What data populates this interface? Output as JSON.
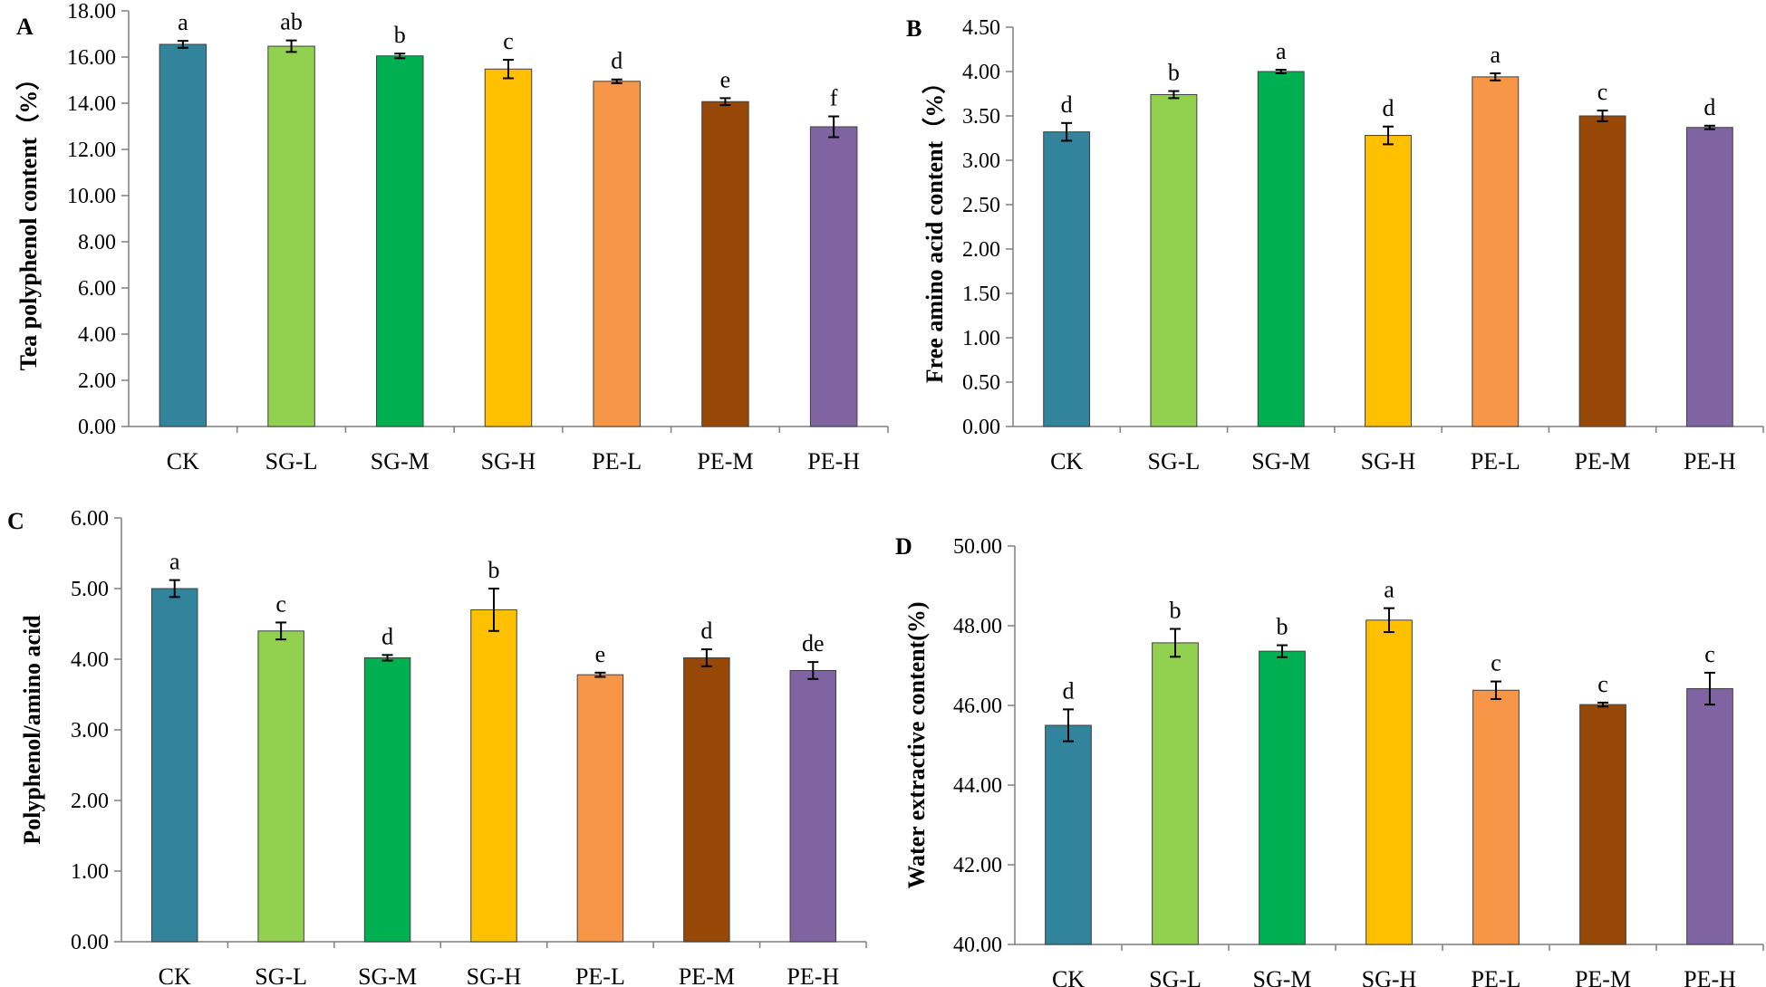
{
  "categories": [
    "CK",
    "SG-L",
    "SG-M",
    "SG-H",
    "PE-L",
    "PE-M",
    "PE-H"
  ],
  "colors": [
    "#31849B",
    "#92D050",
    "#00B050",
    "#FFC000",
    "#F79646",
    "#974806",
    "#8064A2"
  ],
  "chart_data": [
    {
      "panel": "A",
      "type": "bar",
      "ylabel": "Tea polyphenol content（%）",
      "ylim": [
        0,
        18
      ],
      "yticks": [
        "0.00",
        "2.00",
        "4.00",
        "6.00",
        "8.00",
        "10.00",
        "12.00",
        "14.00",
        "16.00",
        "18.00"
      ],
      "values": [
        16.55,
        16.47,
        16.05,
        15.48,
        14.95,
        14.07,
        12.98
      ],
      "errors": [
        0.15,
        0.25,
        0.1,
        0.4,
        0.08,
        0.15,
        0.45
      ],
      "letters": [
        "a",
        "ab",
        "b",
        "c",
        "d",
        "e",
        "f"
      ]
    },
    {
      "panel": "B",
      "type": "bar",
      "ylabel": "Free amino acid content（%）",
      "ylim": [
        0,
        4.5
      ],
      "yticks": [
        "0.00",
        "0.50",
        "1.00",
        "1.50",
        "2.00",
        "2.50",
        "3.00",
        "3.50",
        "4.00",
        "4.50"
      ],
      "values": [
        3.32,
        3.74,
        4.0,
        3.28,
        3.94,
        3.5,
        3.37
      ],
      "errors": [
        0.1,
        0.04,
        0.02,
        0.1,
        0.04,
        0.06,
        0.02
      ],
      "letters": [
        "d",
        "b",
        "a",
        "d",
        "a",
        "c",
        "d"
      ]
    },
    {
      "panel": "C",
      "type": "bar",
      "ylabel": "Polyphenol/amino acid",
      "ylim": [
        0,
        6
      ],
      "yticks": [
        "0.00",
        "1.00",
        "2.00",
        "3.00",
        "4.00",
        "5.00",
        "6.00"
      ],
      "values": [
        5.0,
        4.4,
        4.02,
        4.7,
        3.78,
        4.02,
        3.84
      ],
      "errors": [
        0.12,
        0.12,
        0.04,
        0.3,
        0.03,
        0.12,
        0.12
      ],
      "letters": [
        "a",
        "c",
        "d",
        "b",
        "e",
        "d",
        "de"
      ]
    },
    {
      "panel": "D",
      "type": "bar",
      "ylabel": "Water extractive content(%)",
      "ylim": [
        40,
        50
      ],
      "yticks": [
        "40.00",
        "42.00",
        "44.00",
        "46.00",
        "48.00",
        "50.00"
      ],
      "values": [
        45.5,
        47.57,
        47.36,
        48.14,
        46.38,
        46.02,
        46.42
      ],
      "errors": [
        0.4,
        0.35,
        0.15,
        0.3,
        0.22,
        0.05,
        0.4
      ],
      "letters": [
        "d",
        "b",
        "b",
        "a",
        "c",
        "c",
        "c"
      ]
    }
  ]
}
